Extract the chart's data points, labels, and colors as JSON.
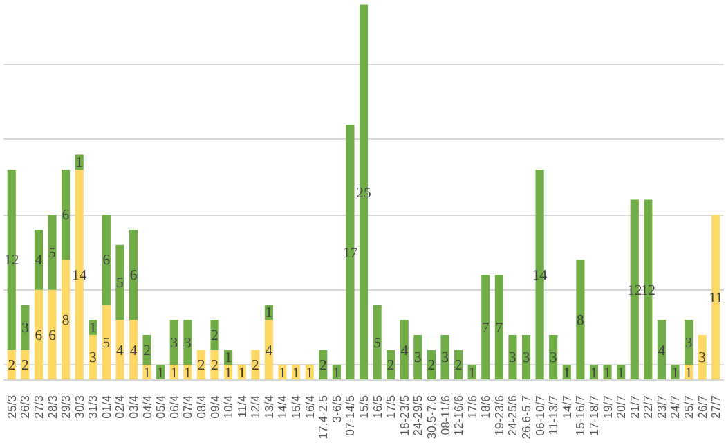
{
  "chart_data": {
    "type": "bar",
    "stacked": true,
    "data_labels": true,
    "grid": "y",
    "tick_labels": "x",
    "categories": [
      "25/3",
      "26/3",
      "27/3",
      "28/3",
      "29/3",
      "30/3",
      "31/3",
      "01/4",
      "02/4",
      "03/4",
      "04/4",
      "05/4",
      "06/4",
      "07/4",
      "08/4",
      "09/4",
      "10/4",
      "11/4",
      "12/4",
      "13/4",
      "14/4",
      "15/4",
      "16/4",
      "17.4-2.5",
      "3-6/5",
      "07-14/5",
      "15/5",
      "16/5",
      "17/5",
      "18-23/5",
      "24-29/5",
      "30.5-7.6",
      "08-11/6",
      "12-16/6",
      "17/6",
      "18/6",
      "19-23/6",
      "24-25/6",
      "26.6-5.7",
      "06-10/7",
      "11-13/7",
      "14/7",
      "15-16/7",
      "17-18/7",
      "19/7",
      "20/7",
      "21/7",
      "22/7",
      "23/7",
      "24/7",
      "25/7",
      "26/7",
      "27/7"
    ],
    "yticks": [
      {
        "value": 1,
        "label": null
      },
      {
        "value": 6,
        "label": null
      },
      {
        "value": 11,
        "label": null
      },
      {
        "value": 16,
        "label": null
      },
      {
        "value": 21,
        "label": null
      }
    ],
    "series": [
      {
        "color": "#ffd966",
        "values": [
          2,
          2,
          6,
          6,
          8,
          14,
          3,
          5,
          4,
          4,
          1,
          null,
          1,
          1,
          2,
          2,
          1,
          1,
          2,
          4,
          1,
          1,
          1,
          null,
          null,
          null,
          null,
          null,
          null,
          null,
          null,
          null,
          null,
          null,
          null,
          null,
          null,
          null,
          null,
          null,
          null,
          null,
          null,
          null,
          null,
          null,
          null,
          null,
          null,
          null,
          1,
          3,
          11
        ]
      },
      {
        "color": "#70ad47",
        "values": [
          12,
          3,
          4,
          5,
          6,
          1,
          1,
          6,
          5,
          6,
          2,
          1,
          3,
          3,
          null,
          2,
          1,
          null,
          null,
          1,
          null,
          null,
          null,
          2,
          1,
          17,
          25,
          5,
          2,
          4,
          3,
          2,
          3,
          2,
          1,
          7,
          7,
          3,
          3,
          14,
          3,
          1,
          8,
          1,
          1,
          1,
          12,
          12,
          4,
          1,
          3,
          null,
          null
        ]
      }
    ]
  }
}
